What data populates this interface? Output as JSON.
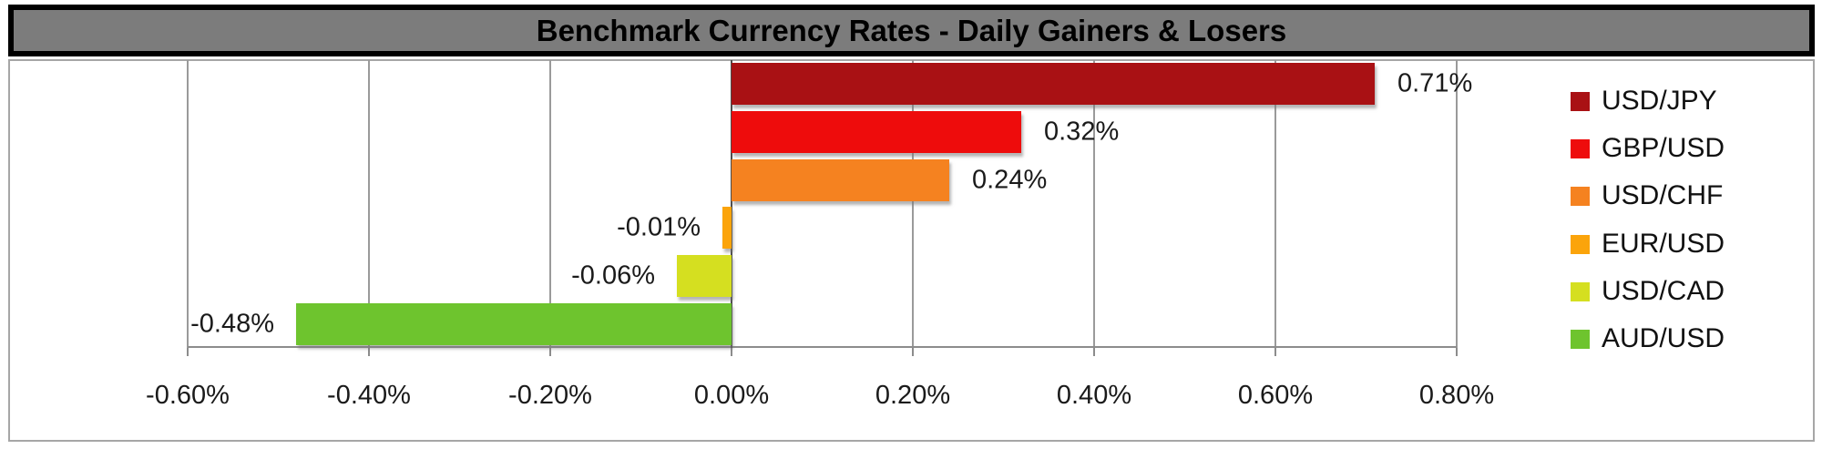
{
  "title": "Benchmark Currency Rates - Daily Gainers & Losers",
  "chart_data": {
    "type": "bar",
    "orientation": "horizontal",
    "title": "Benchmark Currency Rates - Daily Gainers & Losers",
    "categories": [
      "USD/JPY",
      "GBP/USD",
      "USD/CHF",
      "EUR/USD",
      "USD/CAD",
      "AUD/USD"
    ],
    "values": [
      0.71,
      0.32,
      0.24,
      -0.01,
      -0.06,
      -0.48
    ],
    "value_labels": [
      "0.71%",
      "0.32%",
      "0.24%",
      "-0.01%",
      "-0.06%",
      "-0.48%"
    ],
    "bar_colors": [
      "#a91114",
      "#ee0c0c",
      "#f58220",
      "#fba40b",
      "#d5df20",
      "#6ec42e"
    ],
    "xlabel": "",
    "ylabel": "",
    "xlim": [
      -0.6,
      0.8
    ],
    "xtick_values": [
      -0.6,
      -0.4,
      -0.2,
      0.0,
      0.2,
      0.4,
      0.6,
      0.8
    ],
    "xtick_labels": [
      "-0.60%",
      "-0.40%",
      "-0.20%",
      "0.00%",
      "0.20%",
      "0.40%",
      "0.60%",
      "0.80%"
    ],
    "grid": true,
    "legend_position": "right",
    "legend": [
      {
        "label": "USD/JPY",
        "color": "#a91114"
      },
      {
        "label": "GBP/USD",
        "color": "#ee0c0c"
      },
      {
        "label": "USD/CHF",
        "color": "#f58220"
      },
      {
        "label": "EUR/USD",
        "color": "#fba40b"
      },
      {
        "label": "USD/CAD",
        "color": "#d5df20"
      },
      {
        "label": "AUD/USD",
        "color": "#6ec42e"
      }
    ]
  },
  "colors": {
    "title_bg": "#7c7c7c",
    "title_border": "#000000",
    "title_text": "#000000",
    "chart_border": "#a6a6a6",
    "gridline": "#9a9a9a",
    "zero_line": "#4d4d4d",
    "axis_line": "#8c8c8c",
    "label_text": "#1a1a1a"
  }
}
